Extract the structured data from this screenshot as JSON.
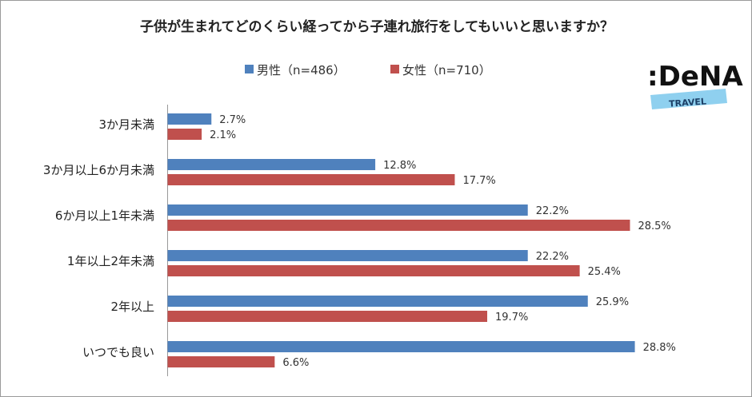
{
  "chart_data": {
    "type": "bar",
    "orientation": "horizontal",
    "title": "子供が生まれてどのくらい経ってから子連れ旅行をしてもいいと思いますか？",
    "categories": [
      "3か月未満",
      "3か月以上6か月未満",
      "6か月以上1年未満",
      "1年以上2年未満",
      "2年以上",
      "いつでも良い"
    ],
    "series": [
      {
        "name": "男性（n=486）",
        "color": "#4F81BD",
        "values": [
          2.7,
          12.8,
          22.2,
          22.2,
          25.9,
          28.8
        ]
      },
      {
        "name": "女性（n=710）",
        "color": "#C0504D",
        "values": [
          2.1,
          17.7,
          28.5,
          25.4,
          19.7,
          6.6
        ]
      }
    ],
    "value_suffix": "%",
    "xlim": [
      0,
      30
    ],
    "grid": false,
    "legend": "top-center",
    "data_labels": true
  },
  "logo": {
    "brand": "DeNA",
    "sub": "TRAVEL"
  }
}
